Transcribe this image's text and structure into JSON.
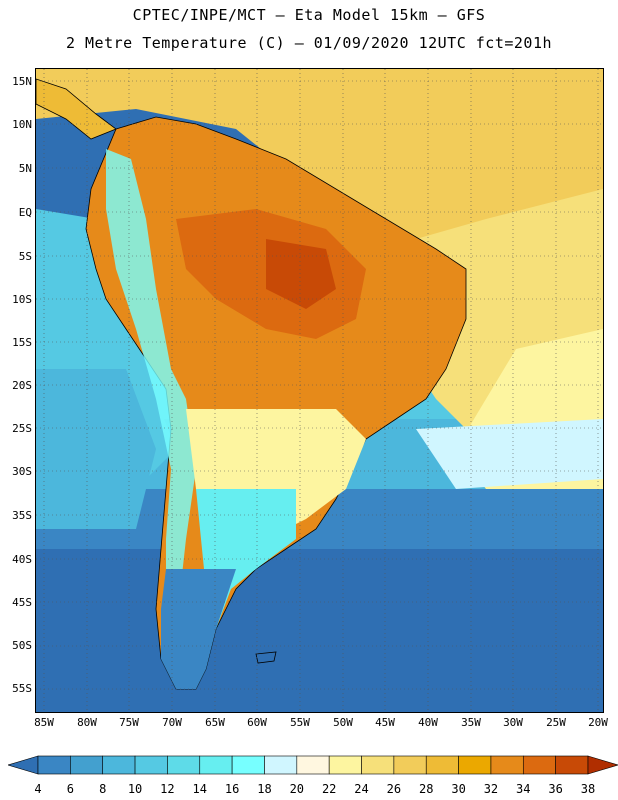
{
  "header": {
    "line1": "CPTEC/INPE/MCT –  Eta Model 15km – GFS",
    "line2": "2 Metre Temperature (C) – 01/09/2020 12UTC fct=201h"
  },
  "axes": {
    "lat_labels": [
      "15N",
      "10N",
      "5N",
      "EQ",
      "5S",
      "10S",
      "15S",
      "20S",
      "25S",
      "30S",
      "35S",
      "40S",
      "45S",
      "50S",
      "55S"
    ],
    "lon_labels": [
      "85W",
      "80W",
      "75W",
      "70W",
      "65W",
      "60W",
      "55W",
      "50W",
      "45W",
      "40W",
      "35W",
      "30W",
      "25W",
      "20W"
    ]
  },
  "colorbar": {
    "levels": [
      "4",
      "6",
      "8",
      "10",
      "12",
      "14",
      "16",
      "18",
      "20",
      "22",
      "24",
      "26",
      "28",
      "30",
      "32",
      "34",
      "36",
      "38"
    ],
    "colors": [
      "#2f6fb3",
      "#3a86c4",
      "#43a0cf",
      "#4cb7dc",
      "#55c9e3",
      "#5edbe8",
      "#66eef0",
      "#77ffff",
      "#d0f6ff",
      "#fff7e0",
      "#fdf5a0",
      "#f6e07a",
      "#f2cc5a",
      "#eebb36",
      "#eba800",
      "#e68a1a",
      "#dc6a10",
      "#c84a06",
      "#b02e00"
    ]
  },
  "colors": {
    "ocean_south": "#2f6fb3",
    "ocean_mid": "#4cb7dc",
    "ocean_warm": "#f2cc5a",
    "land_hot": "#dc6a10",
    "land_warm": "#e68a1a"
  }
}
